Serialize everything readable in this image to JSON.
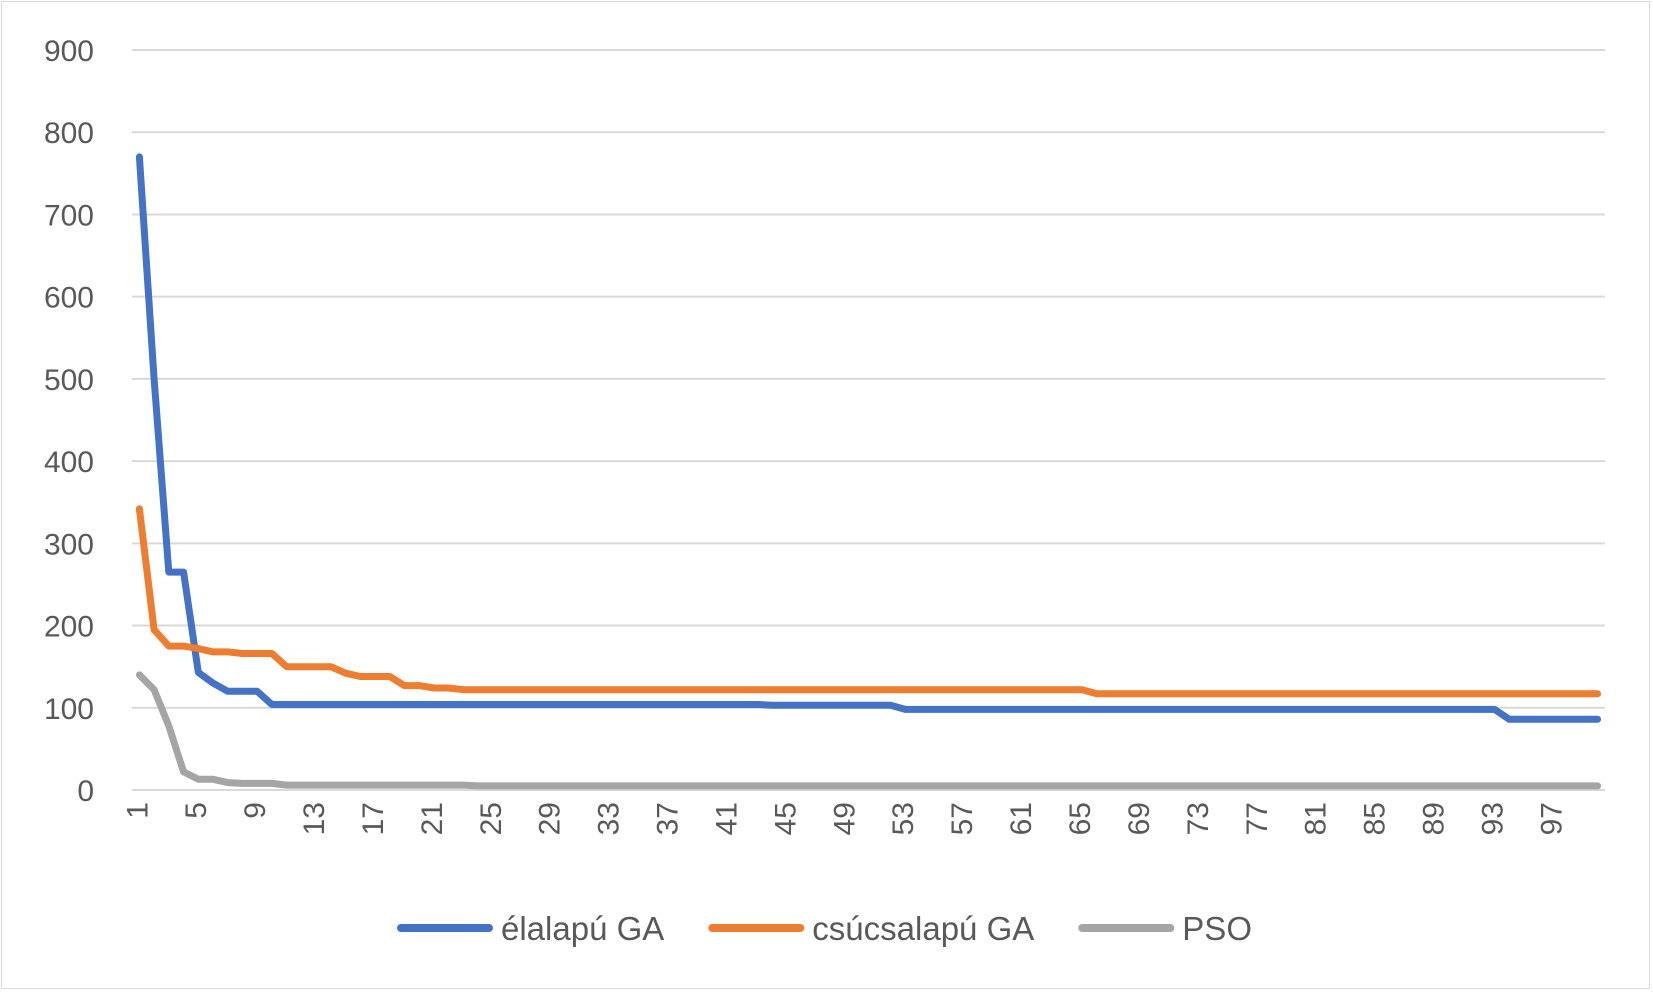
{
  "chart_data": {
    "type": "line",
    "title": "",
    "xlabel": "",
    "ylabel": "",
    "ylim": [
      0,
      900
    ],
    "y_ticks": [
      "0",
      "100",
      "200",
      "300",
      "400",
      "500",
      "600",
      "700",
      "800",
      "900"
    ],
    "x_tick_labels": [
      "1",
      "5",
      "9",
      "13",
      "17",
      "21",
      "25",
      "29",
      "33",
      "37",
      "41",
      "45",
      "49",
      "53",
      "57",
      "61",
      "65",
      "69",
      "73",
      "77",
      "81",
      "85",
      "89",
      "93",
      "97"
    ],
    "x_tick_label_rotation": "vertical",
    "grid": true,
    "legend_position": "bottom",
    "n_points": 100,
    "series": [
      {
        "name": "élalapú GA",
        "color": "#4472c4",
        "breakpoints": [
          [
            1,
            770
          ],
          [
            2,
            500
          ],
          [
            3,
            265
          ],
          [
            4,
            265
          ],
          [
            5,
            143
          ],
          [
            6,
            130
          ],
          [
            7,
            120
          ],
          [
            8,
            120
          ],
          [
            9,
            120
          ],
          [
            10,
            104
          ],
          [
            43,
            104
          ],
          [
            44,
            103
          ],
          [
            52,
            103
          ],
          [
            53,
            98
          ],
          [
            93,
            98
          ],
          [
            94,
            86
          ],
          [
            100,
            86
          ]
        ]
      },
      {
        "name": "csúcsalapú GA",
        "color": "#ed7d31",
        "breakpoints": [
          [
            1,
            342
          ],
          [
            2,
            195
          ],
          [
            3,
            175
          ],
          [
            4,
            175
          ],
          [
            5,
            172
          ],
          [
            6,
            168
          ],
          [
            7,
            168
          ],
          [
            8,
            166
          ],
          [
            10,
            166
          ],
          [
            11,
            150
          ],
          [
            14,
            150
          ],
          [
            15,
            142
          ],
          [
            16,
            138
          ],
          [
            18,
            138
          ],
          [
            19,
            127
          ],
          [
            20,
            127
          ],
          [
            21,
            124
          ],
          [
            22,
            124
          ],
          [
            23,
            122
          ],
          [
            65,
            122
          ],
          [
            66,
            117
          ],
          [
            100,
            117
          ]
        ]
      },
      {
        "name": "PSO",
        "color": "#a5a5a5",
        "breakpoints": [
          [
            1,
            140
          ],
          [
            2,
            122
          ],
          [
            3,
            78
          ],
          [
            4,
            22
          ],
          [
            5,
            13
          ],
          [
            6,
            13
          ],
          [
            7,
            9
          ],
          [
            8,
            8
          ],
          [
            10,
            8
          ],
          [
            11,
            6
          ],
          [
            23,
            6
          ],
          [
            24,
            5
          ],
          [
            100,
            5
          ]
        ]
      }
    ]
  }
}
